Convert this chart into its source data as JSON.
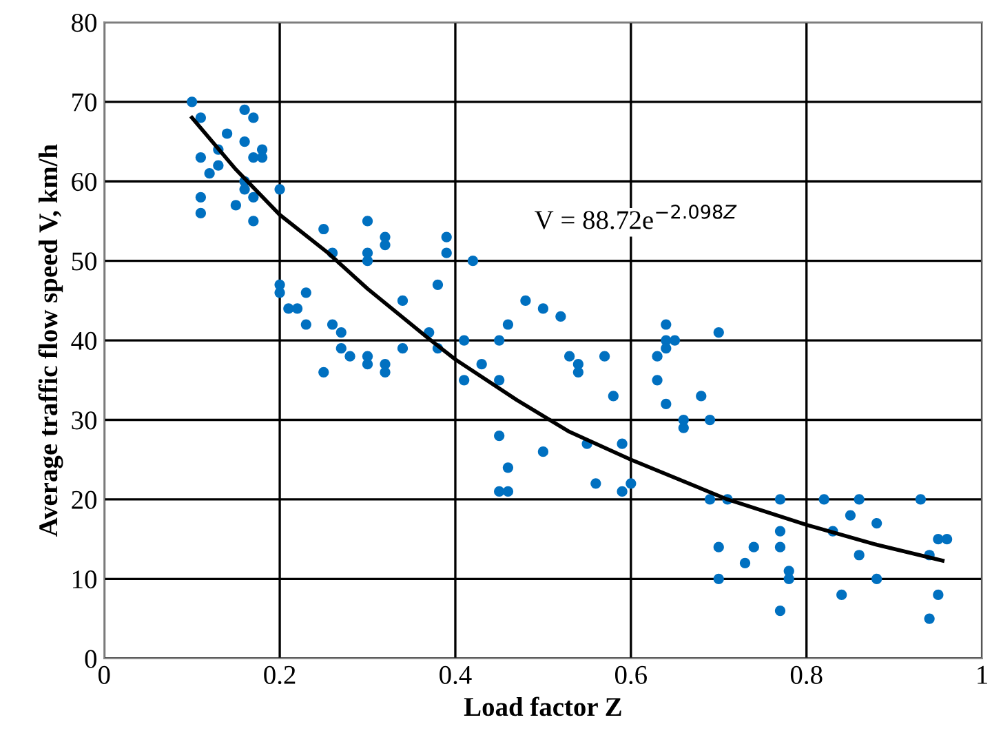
{
  "chart_data": {
    "type": "scatter",
    "xlabel": "Load factor Z",
    "ylabel": "Average traffic flow speed V, km/h",
    "xlim": [
      0,
      1
    ],
    "xticks": [
      0,
      0.2,
      0.4,
      0.6,
      0.8,
      1
    ],
    "ylim": [
      0,
      80
    ],
    "yticks": [
      0,
      10,
      20,
      30,
      40,
      50,
      60,
      70,
      80
    ],
    "grid": true,
    "annotations": [
      "V = 88.72e$^{−2.098Z}$"
    ],
    "series": [
      {
        "marker": "circle",
        "color": "#0070c0",
        "x": [
          0.1,
          0.11,
          0.11,
          0.11,
          0.11,
          0.12,
          0.13,
          0.13,
          0.14,
          0.15,
          0.16,
          0.16,
          0.16,
          0.16,
          0.17,
          0.17,
          0.17,
          0.17,
          0.18,
          0.18,
          0.2,
          0.2,
          0.2,
          0.21,
          0.22,
          0.23,
          0.23,
          0.25,
          0.25,
          0.26,
          0.26,
          0.27,
          0.27,
          0.28,
          0.3,
          0.3,
          0.3,
          0.3,
          0.3,
          0.32,
          0.32,
          0.32,
          0.32,
          0.34,
          0.34,
          0.37,
          0.38,
          0.38,
          0.39,
          0.39,
          0.41,
          0.41,
          0.42,
          0.43,
          0.45,
          0.45,
          0.45,
          0.45,
          0.46,
          0.46,
          0.46,
          0.48,
          0.5,
          0.5,
          0.52,
          0.53,
          0.54,
          0.54,
          0.55,
          0.56,
          0.57,
          0.58,
          0.59,
          0.59,
          0.6,
          0.63,
          0.63,
          0.64,
          0.64,
          0.64,
          0.64,
          0.65,
          0.66,
          0.66,
          0.68,
          0.69,
          0.69,
          0.7,
          0.7,
          0.7,
          0.71,
          0.73,
          0.74,
          0.77,
          0.77,
          0.77,
          0.77,
          0.78,
          0.78,
          0.82,
          0.83,
          0.84,
          0.85,
          0.86,
          0.86,
          0.88,
          0.88,
          0.93,
          0.94,
          0.94,
          0.95,
          0.95,
          0.96
        ],
        "values": [
          70,
          68,
          63,
          58,
          56,
          61,
          62,
          64,
          66,
          57,
          69,
          65,
          60,
          59,
          68,
          63,
          58,
          55,
          64,
          63,
          59,
          47,
          46,
          44,
          44,
          46,
          42,
          54,
          36,
          51,
          42,
          41,
          39,
          38,
          55,
          51,
          50,
          38,
          37,
          53,
          52,
          37,
          36,
          45,
          39,
          41,
          47,
          39,
          53,
          51,
          40,
          35,
          50,
          37,
          40,
          35,
          28,
          21,
          42,
          24,
          21,
          45,
          44,
          26,
          43,
          38,
          37,
          36,
          27,
          22,
          38,
          33,
          27,
          21,
          22,
          38,
          35,
          42,
          40,
          39,
          32,
          40,
          30,
          29,
          33,
          30,
          20,
          41,
          14,
          10,
          20,
          12,
          14,
          20,
          16,
          14,
          6,
          11,
          10,
          20,
          16,
          8,
          18,
          20,
          13,
          17,
          10,
          20,
          13,
          5,
          15,
          8,
          15
        ]
      },
      {
        "type": "line",
        "color": "#000000",
        "marker": "none",
        "line_style": "solid",
        "x": [
          0.1,
          0.15,
          0.2,
          0.255,
          0.3,
          0.37,
          0.4,
          0.47,
          0.53,
          0.6,
          0.71,
          0.8,
          0.88,
          0.955
        ],
        "values": [
          68,
          61.5,
          55.8,
          51,
          46.5,
          40.2,
          37.6,
          32.5,
          28.5,
          25,
          20,
          16.8,
          14.3,
          12.3
        ]
      }
    ]
  }
}
